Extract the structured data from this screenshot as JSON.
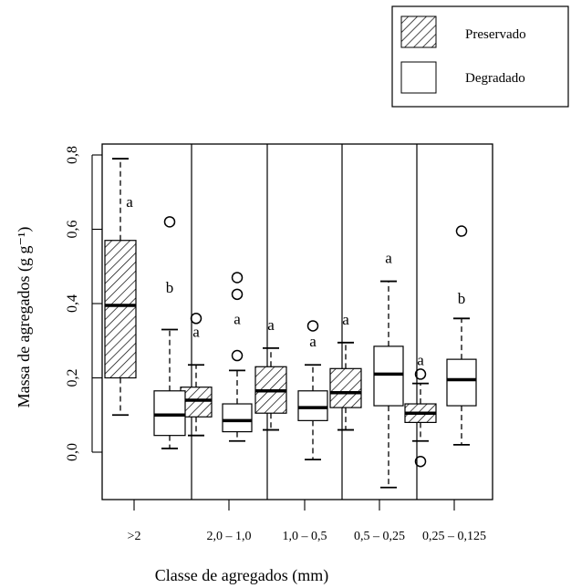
{
  "chart_data": {
    "type": "box",
    "xlabel": "Classe de agregados (mm)",
    "ylabel": "Massa de agregados (g g⁻¹)",
    "ylim": [
      -0.14,
      0.86
    ],
    "yticks": [
      "0,0",
      "0,2",
      "0,4",
      "0,6",
      "0,8"
    ],
    "ytick_values": [
      0.0,
      0.2,
      0.4,
      0.6,
      0.8
    ],
    "grid": false,
    "legend_position": "top-right",
    "legend": [
      {
        "name": "Preservado",
        "fill": "hatched"
      },
      {
        "name": "Degradado",
        "fill": "white"
      }
    ],
    "categories": [
      ">2",
      "2,0 – 1,0",
      "1,0 – 0,5",
      "0,5 – 0,25",
      "0,25 – 0,125"
    ],
    "series": [
      {
        "name": "Preservado",
        "boxes": [
          {
            "whisker_low": 0.1,
            "q1": 0.2,
            "median": 0.395,
            "q3": 0.57,
            "whisker_high": 0.79,
            "outliers": [],
            "letter": "a"
          },
          {
            "whisker_low": 0.045,
            "q1": 0.095,
            "median": 0.14,
            "q3": 0.175,
            "whisker_high": 0.235,
            "outliers": [
              0.36
            ],
            "letter": "a"
          },
          {
            "whisker_low": 0.06,
            "q1": 0.105,
            "median": 0.165,
            "q3": 0.23,
            "whisker_high": 0.28,
            "outliers": [],
            "letter": "a"
          },
          {
            "whisker_low": 0.06,
            "q1": 0.12,
            "median": 0.16,
            "q3": 0.225,
            "whisker_high": 0.295,
            "outliers": [],
            "letter": "a"
          },
          {
            "whisker_low": 0.03,
            "q1": 0.08,
            "median": 0.105,
            "q3": 0.13,
            "whisker_high": 0.185,
            "outliers": [
              0.21,
              -0.025
            ],
            "letter": "a"
          }
        ]
      },
      {
        "name": "Degradado",
        "boxes": [
          {
            "whisker_low": 0.01,
            "q1": 0.045,
            "median": 0.1,
            "q3": 0.165,
            "whisker_high": 0.33,
            "outliers": [
              0.62
            ],
            "letter": "b"
          },
          {
            "whisker_low": 0.03,
            "q1": 0.055,
            "median": 0.085,
            "q3": 0.13,
            "whisker_high": 0.22,
            "outliers": [
              0.47,
              0.425,
              0.26
            ],
            "letter": "a"
          },
          {
            "whisker_low": -0.02,
            "q1": 0.085,
            "median": 0.12,
            "q3": 0.165,
            "whisker_high": 0.235,
            "outliers": [
              0.34
            ],
            "letter": "a"
          },
          {
            "whisker_low": -0.095,
            "q1": 0.125,
            "median": 0.21,
            "q3": 0.285,
            "whisker_high": 0.46,
            "outliers": [],
            "letter": "a"
          },
          {
            "whisker_low": 0.02,
            "q1": 0.125,
            "median": 0.195,
            "q3": 0.25,
            "whisker_high": 0.36,
            "outliers": [
              0.595
            ],
            "letter": "b"
          }
        ]
      }
    ]
  }
}
